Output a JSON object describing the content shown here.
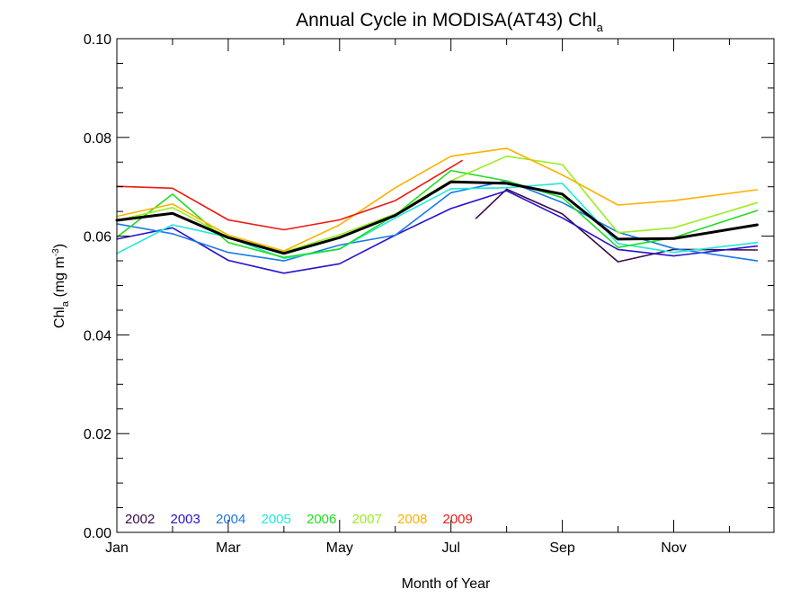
{
  "chart_data": {
    "type": "line",
    "title_main": "Annual Cycle in MODISA(AT43) Chl",
    "title_sub": "a",
    "xlabel": "Month of Year",
    "ylabel_main": "Chl",
    "ylabel_sub": "a",
    "ylabel_unit_open": " (mg m",
    "ylabel_unit_sup": "-3",
    "ylabel_unit_close": ")",
    "xlim": [
      1,
      12.8
    ],
    "ylim": [
      0.0,
      0.1
    ],
    "x_ticks": [
      {
        "value": 1,
        "label": "Jan"
      },
      {
        "value": 3,
        "label": "Mar"
      },
      {
        "value": 5,
        "label": "May"
      },
      {
        "value": 7,
        "label": "Jul"
      },
      {
        "value": 9,
        "label": "Sep"
      },
      {
        "value": 11,
        "label": "Nov"
      }
    ],
    "x_minor_ticks": [
      2,
      4,
      6,
      8,
      10,
      12
    ],
    "y_ticks": [
      {
        "value": 0.0,
        "label": "0.00"
      },
      {
        "value": 0.02,
        "label": "0.02"
      },
      {
        "value": 0.04,
        "label": "0.04"
      },
      {
        "value": 0.06,
        "label": "0.06"
      },
      {
        "value": 0.08,
        "label": "0.08"
      },
      {
        "value": 0.1,
        "label": "0.10"
      }
    ],
    "y_minor_step": 0.005,
    "grid": false,
    "legend_position": "bottom-left",
    "series": [
      {
        "name": "2002",
        "color": "#3a0a4a",
        "width": 1.6,
        "x": [
          7.45,
          8.0,
          9.0,
          10.0,
          11.0,
          12.5
        ],
        "y": [
          0.0636,
          0.0695,
          0.0645,
          0.0548,
          0.0573,
          0.0572
        ]
      },
      {
        "name": "2003",
        "color": "#2a12cc",
        "width": 1.6,
        "x": [
          1.0,
          2.0,
          3.0,
          4.0,
          5.0,
          6.0,
          7.0,
          8.0,
          9.0,
          10.0,
          11.0,
          12.5
        ],
        "y": [
          0.0594,
          0.0617,
          0.0551,
          0.0525,
          0.0544,
          0.0602,
          0.0656,
          0.0692,
          0.0637,
          0.0573,
          0.056,
          0.058
        ]
      },
      {
        "name": "2004",
        "color": "#1a78e8",
        "width": 1.6,
        "x": [
          1.0,
          2.0,
          3.0,
          4.0,
          5.0,
          6.0,
          7.0,
          8.0,
          9.0,
          10.0,
          11.0,
          12.5
        ],
        "y": [
          0.0625,
          0.0605,
          0.0567,
          0.055,
          0.0582,
          0.0602,
          0.0688,
          0.0712,
          0.0668,
          0.0608,
          0.0575,
          0.055
        ]
      },
      {
        "name": "2005",
        "color": "#22e8d8",
        "width": 1.6,
        "x": [
          1.0,
          2.0,
          3.0,
          4.0,
          5.0,
          6.0,
          7.0,
          8.0,
          9.0,
          10.0,
          11.0,
          12.5
        ],
        "y": [
          0.0565,
          0.0623,
          0.0598,
          0.0555,
          0.0574,
          0.0637,
          0.0696,
          0.0698,
          0.0707,
          0.0585,
          0.0567,
          0.0587
        ]
      },
      {
        "name": "2006",
        "color": "#22dd22",
        "width": 1.6,
        "x": [
          1.0,
          2.0,
          3.0,
          4.0,
          5.0,
          6.0,
          7.0,
          8.0,
          9.0,
          10.0,
          11.0,
          12.5
        ],
        "y": [
          0.0598,
          0.0685,
          0.0587,
          0.0557,
          0.0574,
          0.0643,
          0.0733,
          0.0712,
          0.0678,
          0.0577,
          0.0597,
          0.0652
        ]
      },
      {
        "name": "2007",
        "color": "#99ee22",
        "width": 1.6,
        "x": [
          1.0,
          2.0,
          3.0,
          4.0,
          5.0,
          6.0,
          7.0,
          8.0,
          9.0,
          10.0,
          11.0,
          12.5
        ],
        "y": [
          0.0632,
          0.0658,
          0.0598,
          0.0568,
          0.0603,
          0.0645,
          0.0712,
          0.0762,
          0.0745,
          0.0607,
          0.0617,
          0.0668
        ]
      },
      {
        "name": "2008",
        "color": "#ffb000",
        "width": 1.6,
        "x": [
          1.0,
          2.0,
          3.0,
          4.0,
          5.0,
          6.0,
          7.0,
          8.0,
          9.0,
          10.0,
          11.0,
          12.5
        ],
        "y": [
          0.064,
          0.0665,
          0.0602,
          0.057,
          0.0623,
          0.0698,
          0.0762,
          0.0778,
          0.0724,
          0.0663,
          0.0672,
          0.0694
        ]
      },
      {
        "name": "2009",
        "color": "#ee1a10",
        "width": 1.6,
        "x": [
          1.0,
          2.0,
          3.0,
          4.0,
          5.0,
          6.0,
          7.2
        ],
        "y": [
          0.0701,
          0.0697,
          0.0633,
          0.0613,
          0.0633,
          0.0672,
          0.0753
        ]
      },
      {
        "name": "",
        "color": "#000000",
        "width": 3,
        "x": [
          1.0,
          2.0,
          3.0,
          4.0,
          5.0,
          6.0,
          7.0,
          8.0,
          9.0,
          10.0,
          11.0,
          12.5
        ],
        "y": [
          0.0632,
          0.0646,
          0.0597,
          0.0565,
          0.0597,
          0.0642,
          0.071,
          0.0707,
          0.0685,
          0.0594,
          0.0595,
          0.0623
        ]
      }
    ]
  }
}
